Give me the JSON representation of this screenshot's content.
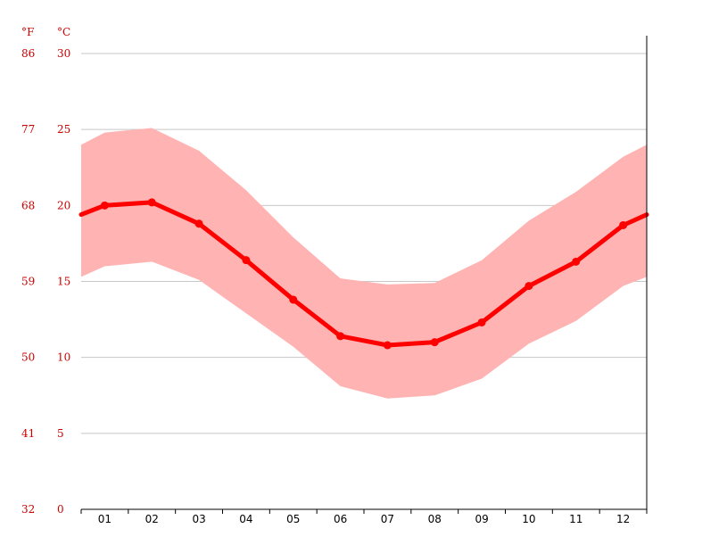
{
  "chart_data": {
    "type": "area",
    "categories": [
      "01",
      "02",
      "03",
      "04",
      "05",
      "06",
      "07",
      "08",
      "09",
      "10",
      "11",
      "12"
    ],
    "series": [
      {
        "values": [
          20.0,
          20.2,
          18.8,
          16.4,
          13.8,
          11.4,
          10.8,
          11.0,
          12.3,
          14.7,
          16.3,
          18.7
        ]
      }
    ],
    "band": {
      "upper": [
        24.8,
        25.1,
        23.6,
        21.0,
        17.9,
        15.2,
        14.8,
        14.9,
        16.4,
        19.0,
        20.9,
        23.2
      ],
      "lower": [
        16.0,
        16.3,
        15.1,
        12.9,
        10.7,
        8.1,
        7.3,
        7.5,
        8.6,
        10.9,
        12.4,
        14.7
      ]
    },
    "edge_values": {
      "start": {
        "line": 19.4,
        "upper": 24.0,
        "lower": 15.3
      },
      "end": {
        "line": 19.4,
        "upper": 24.0,
        "lower": 15.3
      }
    },
    "y_axis_c": {
      "unit": "°C",
      "ticks": [
        0,
        5,
        10,
        15,
        20,
        25,
        30
      ]
    },
    "y_axis_f": {
      "unit": "°F",
      "ticks": [
        32,
        41,
        50,
        59,
        68,
        77,
        86
      ]
    },
    "ylim": [
      0,
      30
    ],
    "grid": true,
    "colors": {
      "line": "#ff0000",
      "band": "#ffb3b3",
      "axis_labels": "#cc0000",
      "grid": "#c8c8c8",
      "axis": "#000000"
    }
  }
}
